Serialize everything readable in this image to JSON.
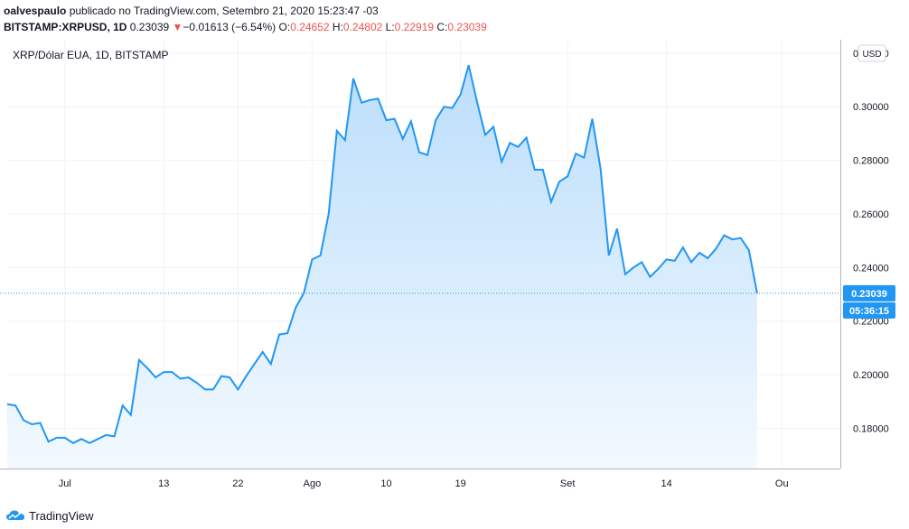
{
  "header": {
    "author": "oalvespaulo",
    "published": "publicado no TradingView.com, Setembro 21, 2020 15:23:47 -03",
    "symbol_line": "BITSTAMP:XRPUSD, 1D",
    "last": "0.23039",
    "change_arrow": "▼",
    "change": "−0.01613 (−6.54%)",
    "o_label": "O:",
    "o_value": "0.24652",
    "h_label": "H:",
    "h_value": "0.24802",
    "l_label": "L:",
    "l_value": "0.22919",
    "c_label": "C:",
    "c_value": "0.23039"
  },
  "colors": {
    "line": "#2196f3",
    "fill_top": "#bbdefb",
    "fill_bottom": "#f3f9ff",
    "price_label_bg": "#2196f3",
    "down": "#ef5350",
    "grid": "#f0f3fa",
    "axis_text": "#131722"
  },
  "footer": {
    "brand": "TradingView",
    "logo_icon": "tradingview-cloud-icon"
  },
  "chart_data": {
    "type": "area",
    "title": "XRP/Dólar EUA, 1D, BITSTAMP",
    "currency_badge": "USD",
    "ylim": [
      0.165,
      0.325
    ],
    "yticks": [
      "0.18000",
      "0.20000",
      "0.22000",
      "0.24000",
      "0.26000",
      "0.28000",
      "0.30000",
      "0.32000"
    ],
    "ytick_values": [
      0.18,
      0.2,
      0.22,
      0.24,
      0.26,
      0.28,
      0.3,
      0.32
    ],
    "xtick_labels": [
      "Jul",
      "13",
      "22",
      "Ago",
      "10",
      "19",
      "Set",
      "14",
      "Ou"
    ],
    "xtick_index": [
      7,
      19,
      28,
      37,
      46,
      55,
      68,
      80,
      94
    ],
    "x_start": "2020-06-24",
    "x_end": "2020-09-21",
    "current_price": "0.23039",
    "current_value": 0.23039,
    "countdown": "05:36:15",
    "grid": true,
    "series": [
      {
        "values": [
          0.189,
          0.1885,
          0.183,
          0.1815,
          0.182,
          0.175,
          0.1765,
          0.1765,
          0.1745,
          0.176,
          0.1745,
          0.176,
          0.1775,
          0.177,
          0.1885,
          0.185,
          0.2055,
          0.2025,
          0.199,
          0.201,
          0.201,
          0.1985,
          0.199,
          0.197,
          0.1945,
          0.1945,
          0.1995,
          0.199,
          0.1945,
          0.1995,
          0.204,
          0.2085,
          0.204,
          0.215,
          0.2155,
          0.225,
          0.2305,
          0.243,
          0.2445,
          0.26,
          0.291,
          0.2875,
          0.3105,
          0.3015,
          0.3025,
          0.303,
          0.295,
          0.2955,
          0.288,
          0.2945,
          0.283,
          0.282,
          0.295,
          0.3,
          0.2995,
          0.3045,
          0.3155,
          0.302,
          0.2895,
          0.2925,
          0.2795,
          0.2865,
          0.285,
          0.2885,
          0.2765,
          0.2765,
          0.2645,
          0.272,
          0.274,
          0.2825,
          0.281,
          0.2955,
          0.277,
          0.2445,
          0.2545,
          0.2375,
          0.24,
          0.242,
          0.2365,
          0.2395,
          0.243,
          0.2425,
          0.2475,
          0.242,
          0.2455,
          0.2435,
          0.247,
          0.252,
          0.2505,
          0.251,
          0.2465,
          0.2304
        ]
      }
    ]
  }
}
